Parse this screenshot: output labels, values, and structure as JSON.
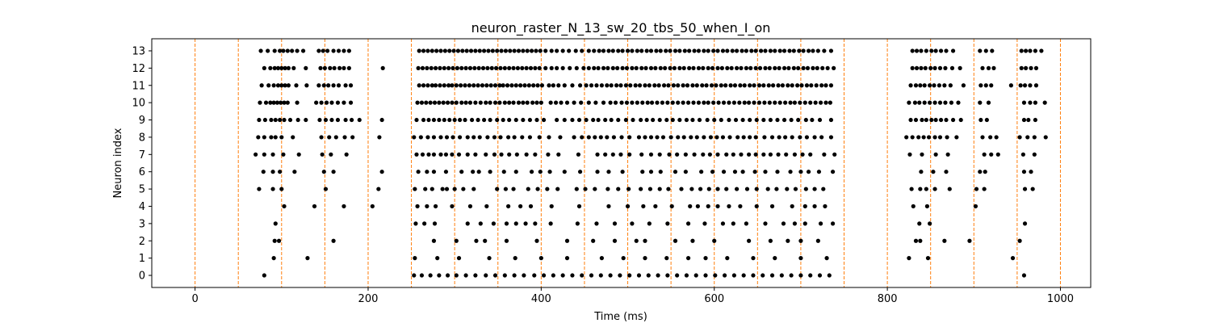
{
  "chart_data": {
    "type": "scatter",
    "title": "neuron_raster_N_13_sw_20_tbs_50_when_I_on",
    "xlabel": "Time (ms)",
    "ylabel": "Neuron index",
    "xlim": [
      -50,
      1035
    ],
    "ylim": [
      -0.7,
      13.7
    ],
    "xticks": [
      0,
      200,
      400,
      600,
      800,
      1000
    ],
    "yticks": [
      0,
      1,
      2,
      3,
      4,
      5,
      6,
      7,
      8,
      9,
      10,
      11,
      12,
      13
    ],
    "grid": false,
    "marker_color": "#000000",
    "vline_color": "#ff7f0e",
    "vlines": [
      0,
      50,
      100,
      150,
      200,
      250,
      300,
      350,
      400,
      450,
      500,
      550,
      600,
      650,
      700,
      750,
      800,
      850,
      900,
      950,
      1000
    ],
    "series": [
      {
        "neuron": 0,
        "x": [
          80,
          253,
          262,
          272,
          282,
          292,
          302,
          313,
          324,
          336,
          347,
          358,
          369,
          380,
          392,
          403,
          414,
          425,
          436,
          447,
          458,
          469,
          480,
          491,
          502,
          513,
          524,
          535,
          546,
          557,
          568,
          579,
          590,
          601,
          612,
          623,
          634,
          645,
          656,
          667,
          678,
          689,
          700,
          711,
          722,
          733,
          958
        ]
      },
      {
        "neuron": 1,
        "x": [
          91,
          130,
          254,
          280,
          305,
          340,
          370,
          400,
          430,
          470,
          495,
          520,
          545,
          570,
          590,
          615,
          645,
          670,
          700,
          730,
          825,
          847,
          945
        ]
      },
      {
        "neuron": 2,
        "x": [
          92,
          97,
          160,
          276,
          302,
          325,
          335,
          360,
          395,
          430,
          460,
          485,
          510,
          520,
          555,
          575,
          600,
          640,
          665,
          685,
          700,
          720,
          833,
          838,
          866,
          895,
          953
        ]
      },
      {
        "neuron": 3,
        "x": [
          93,
          255,
          265,
          277,
          315,
          330,
          345,
          360,
          371,
          382,
          393,
          411,
          442,
          464,
          485,
          505,
          525,
          546,
          570,
          589,
          610,
          622,
          637,
          659,
          680,
          693,
          705,
          723,
          737,
          837,
          849,
          959
        ]
      },
      {
        "neuron": 4,
        "x": [
          103,
          138,
          172,
          205,
          257,
          268,
          278,
          297,
          318,
          337,
          362,
          376,
          388,
          412,
          444,
          478,
          500,
          518,
          532,
          551,
          572,
          581,
          593,
          604,
          617,
          630,
          649,
          667,
          690,
          705,
          716,
          728,
          830,
          846,
          902
        ]
      },
      {
        "neuron": 5,
        "x": [
          74,
          90,
          100,
          151,
          212,
          254,
          266,
          274,
          286,
          291,
          300,
          310,
          322,
          349,
          359,
          368,
          385,
          396,
          407,
          419,
          441,
          451,
          462,
          477,
          489,
          501,
          515,
          526,
          537,
          547,
          562,
          574,
          584,
          594,
          604,
          614,
          626,
          638,
          649,
          662,
          672,
          684,
          694,
          706,
          716,
          726,
          828,
          838,
          845,
          855,
          872,
          903,
          912,
          959,
          968
        ]
      },
      {
        "neuron": 6,
        "x": [
          79,
          90,
          98,
          115,
          149,
          160,
          216,
          258,
          268,
          276,
          290,
          308,
          321,
          328,
          341,
          357,
          371,
          389,
          399,
          410,
          427,
          445,
          465,
          478,
          494,
          517,
          527,
          538,
          555,
          567,
          585,
          598,
          611,
          624,
          633,
          647,
          659,
          673,
          688,
          700,
          709,
          721,
          737,
          839,
          853,
          868,
          907,
          913,
          958,
          966
        ]
      },
      {
        "neuron": 7,
        "x": [
          70,
          80,
          90,
          102,
          120,
          147,
          157,
          175,
          256,
          263,
          270,
          276,
          284,
          290,
          297,
          305,
          315,
          324,
          336,
          346,
          354,
          363,
          372,
          383,
          393,
          408,
          420,
          443,
          465,
          474,
          483,
          492,
          502,
          516,
          527,
          537,
          548,
          557,
          567,
          577,
          587,
          595,
          604,
          614,
          622,
          631,
          640,
          648,
          657,
          665,
          674,
          683,
          693,
          702,
          711,
          727,
          739,
          826,
          840,
          856,
          870,
          912,
          920,
          928,
          957,
          970
        ]
      },
      {
        "neuron": 8,
        "x": [
          73,
          80,
          88,
          93,
          100,
          113,
          146,
          155,
          163,
          173,
          182,
          213,
          253,
          261,
          269,
          276,
          284,
          291,
          298,
          306,
          315,
          322,
          329,
          338,
          346,
          353,
          362,
          369,
          378,
          387,
          398,
          409,
          422,
          438,
          447,
          455,
          462,
          469,
          476,
          484,
          493,
          502,
          513,
          520,
          527,
          534,
          541,
          550,
          558,
          565,
          573,
          580,
          588,
          596,
          603,
          610,
          618,
          627,
          634,
          641,
          648,
          658,
          667,
          675,
          682,
          690,
          699,
          707,
          716,
          724,
          735,
          822,
          829,
          836,
          842,
          848,
          855,
          861,
          869,
          880,
          910,
          919,
          926,
          953,
          962,
          970,
          983
        ]
      },
      {
        "neuron": 9,
        "x": [
          74,
          81,
          88,
          93,
          98,
          103,
          110,
          119,
          128,
          144,
          151,
          158,
          165,
          174,
          181,
          190,
          216,
          256,
          264,
          270,
          276,
          282,
          288,
          294,
          300,
          306,
          312,
          320,
          327,
          334,
          341,
          349,
          356,
          363,
          371,
          379,
          387,
          395,
          403,
          418,
          427,
          436,
          444,
          452,
          460,
          466,
          474,
          481,
          489,
          498,
          506,
          515,
          522,
          529,
          537,
          545,
          552,
          560,
          568,
          575,
          583,
          592,
          600,
          608,
          617,
          625,
          633,
          641,
          649,
          657,
          665,
          673,
          681,
          689,
          697,
          706,
          713,
          722,
          735,
          827,
          833,
          840,
          845,
          851,
          856,
          862,
          868,
          876,
          885,
          908,
          915,
          958,
          963,
          971
        ]
      },
      {
        "neuron": 10,
        "x": [
          75,
          82,
          87,
          91,
          95,
          99,
          103,
          107,
          118,
          140,
          146,
          152,
          158,
          165,
          172,
          180,
          257,
          262,
          267,
          272,
          277,
          282,
          287,
          292,
          297,
          302,
          308,
          313,
          318,
          324,
          330,
          336,
          341,
          347,
          352,
          358,
          363,
          368,
          374,
          379,
          384,
          390,
          395,
          400,
          411,
          417,
          423,
          430,
          438,
          446,
          455,
          463,
          472,
          480,
          486,
          493,
          499,
          505,
          511,
          517,
          523,
          528,
          534,
          540,
          546,
          552,
          558,
          564,
          570,
          576,
          582,
          588,
          593,
          599,
          605,
          611,
          617,
          623,
          629,
          635,
          640,
          646,
          652,
          658,
          664,
          670,
          676,
          682,
          688,
          693,
          699,
          705,
          711,
          717,
          723,
          729,
          734,
          825,
          832,
          837,
          843,
          849,
          855,
          861,
          867,
          874,
          882,
          907,
          917,
          958,
          965,
          971,
          982
        ]
      },
      {
        "neuron": 11,
        "x": [
          77,
          85,
          91,
          96,
          100,
          104,
          108,
          117,
          129,
          143,
          149,
          154,
          160,
          166,
          174,
          180,
          259,
          264,
          269,
          274,
          278,
          283,
          288,
          293,
          297,
          302,
          307,
          312,
          317,
          322,
          327,
          332,
          337,
          342,
          347,
          352,
          356,
          361,
          366,
          371,
          376,
          381,
          386,
          391,
          396,
          401,
          409,
          414,
          420,
          427,
          436,
          445,
          452,
          458,
          464,
          470,
          476,
          481,
          487,
          492,
          498,
          503,
          509,
          514,
          520,
          525,
          531,
          536,
          542,
          547,
          553,
          558,
          564,
          569,
          575,
          580,
          586,
          591,
          597,
          602,
          608,
          613,
          619,
          624,
          630,
          635,
          641,
          646,
          652,
          657,
          663,
          668,
          674,
          679,
          685,
          690,
          696,
          701,
          707,
          712,
          718,
          724,
          729,
          735,
          827,
          833,
          838,
          843,
          849,
          854,
          860,
          866,
          873,
          888,
          908,
          914,
          920,
          943,
          954,
          959,
          965,
          972
        ]
      },
      {
        "neuron": 12,
        "x": [
          80,
          87,
          92,
          96,
          100,
          104,
          108,
          114,
          128,
          145,
          150,
          156,
          161,
          167,
          172,
          178,
          217,
          258,
          263,
          268,
          273,
          278,
          283,
          288,
          293,
          298,
          303,
          308,
          313,
          318,
          323,
          328,
          333,
          338,
          343,
          348,
          353,
          358,
          363,
          368,
          373,
          378,
          383,
          388,
          393,
          398,
          405,
          412,
          418,
          425,
          433,
          441,
          449,
          455,
          461,
          466,
          472,
          477,
          483,
          488,
          494,
          499,
          505,
          510,
          516,
          521,
          527,
          532,
          538,
          543,
          549,
          554,
          560,
          565,
          571,
          576,
          582,
          587,
          593,
          598,
          604,
          609,
          615,
          620,
          626,
          631,
          637,
          642,
          648,
          653,
          659,
          664,
          670,
          675,
          681,
          686,
          692,
          697,
          703,
          708,
          714,
          719,
          725,
          731,
          738,
          829,
          834,
          839,
          844,
          850,
          855,
          861,
          867,
          875,
          884,
          910,
          917,
          923,
          955,
          960,
          966,
          972
        ]
      },
      {
        "neuron": 13,
        "x": [
          76,
          84,
          92,
          98,
          102,
          107,
          112,
          118,
          125,
          143,
          148,
          153,
          160,
          166,
          172,
          178,
          259,
          264,
          269,
          274,
          279,
          284,
          289,
          294,
          299,
          304,
          309,
          314,
          319,
          324,
          329,
          334,
          339,
          344,
          349,
          354,
          359,
          364,
          369,
          374,
          379,
          384,
          389,
          394,
          399,
          405,
          412,
          418,
          425,
          432,
          440,
          447,
          455,
          461,
          467,
          472,
          478,
          483,
          489,
          494,
          500,
          505,
          511,
          516,
          522,
          527,
          533,
          538,
          544,
          549,
          555,
          560,
          566,
          571,
          577,
          582,
          588,
          593,
          599,
          604,
          610,
          615,
          621,
          626,
          632,
          637,
          643,
          648,
          654,
          659,
          665,
          670,
          676,
          681,
          687,
          692,
          698,
          703,
          709,
          714,
          720,
          727,
          735,
          829,
          834,
          839,
          845,
          851,
          856,
          862,
          868,
          876,
          907,
          914,
          921,
          955,
          960,
          965,
          971,
          978
        ]
      }
    ]
  }
}
